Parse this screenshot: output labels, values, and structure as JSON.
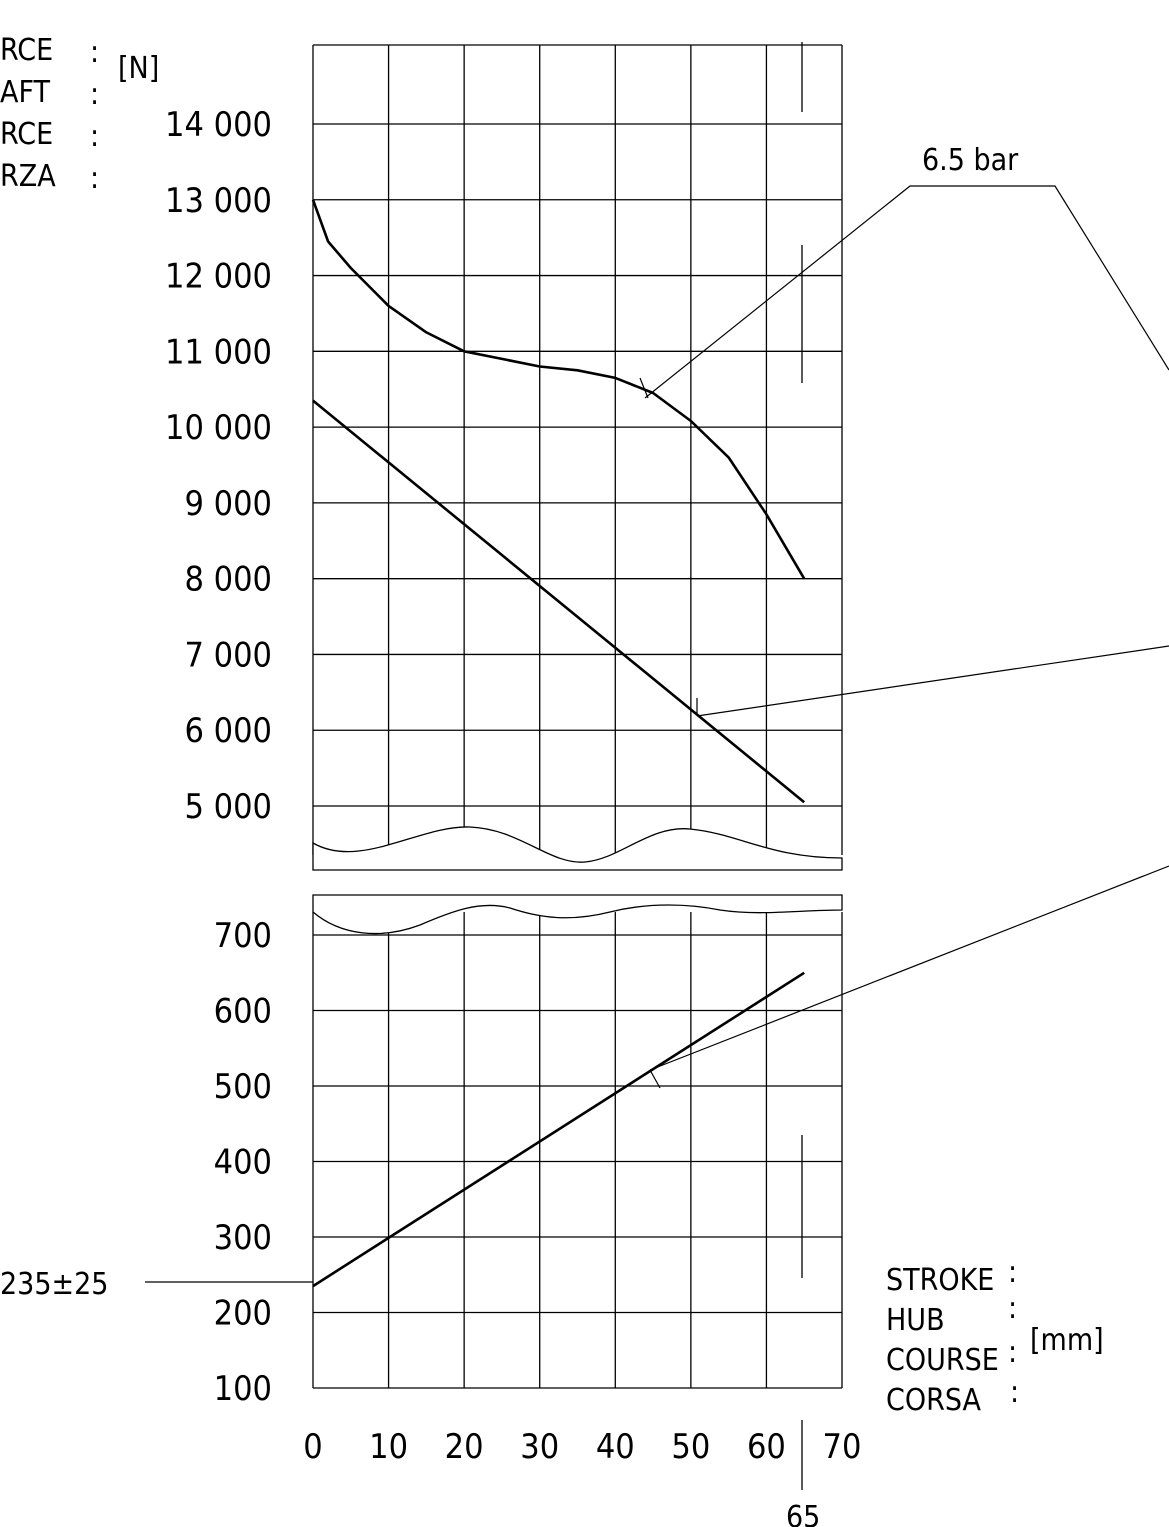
{
  "chart_data": [
    {
      "type": "line",
      "panel": "upper",
      "xlim": [
        0,
        70
      ],
      "ylim": [
        5000,
        14000
      ],
      "yticks": [
        "14 000",
        "13 000",
        "12 000",
        "11 000",
        "10 000",
        "9 000",
        "8 000",
        "7 000",
        "6 000",
        "5 000"
      ],
      "grid": true,
      "series": [
        {
          "name": "6.5 bar",
          "x": [
            0,
            2,
            5,
            10,
            15,
            20,
            25,
            30,
            35,
            40,
            45,
            50,
            55,
            60,
            65
          ],
          "y": [
            13000,
            12450,
            12100,
            11600,
            11250,
            11000,
            10900,
            10800,
            10750,
            10650,
            10450,
            10080,
            9600,
            8850,
            8000
          ]
        },
        {
          "name": "",
          "x": [
            0,
            65
          ],
          "y": [
            10350,
            5050
          ]
        }
      ]
    },
    {
      "type": "line",
      "panel": "lower",
      "xlim": [
        0,
        70
      ],
      "ylim": [
        100,
        700
      ],
      "yticks": [
        "700",
        "600",
        "500",
        "400",
        "300",
        "200",
        "100"
      ],
      "xticks": [
        "0",
        "10",
        "20",
        "30",
        "40",
        "50",
        "60",
        "70"
      ],
      "grid": true,
      "series": [
        {
          "name": "",
          "x": [
            0,
            65
          ],
          "y": [
            235,
            650
          ]
        }
      ]
    }
  ],
  "labels": {
    "force_lines": [
      "RCE",
      "AFT",
      "RCE",
      "RZA"
    ],
    "force_colon": ":",
    "force_unit": "[N]",
    "stroke_lines": [
      "STROKE",
      "HUB",
      "COURSE",
      "CORSA"
    ],
    "stroke_colon": ":",
    "stroke_unit": "[mm]",
    "pressure": "6.5 bar",
    "tolerance": "235±25",
    "stroke_marker": "65"
  },
  "colors": {
    "ink": "#000000",
    "background": "#ffffff"
  }
}
